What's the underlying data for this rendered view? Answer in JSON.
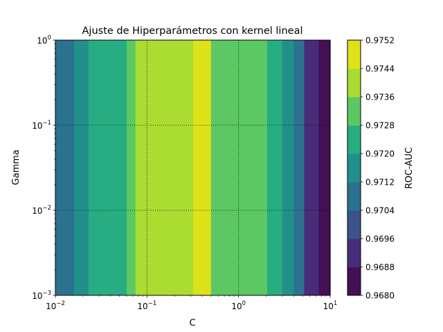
{
  "chart_data": {
    "type": "heatmap",
    "title": "Ajuste de Hiperparámetros con kernel lineal",
    "xlabel": "C",
    "ylabel": "Gamma",
    "colorbar_label": "ROC-AUC",
    "x_scale": "log",
    "y_scale": "log",
    "xlim": [
      0.01,
      10
    ],
    "ylim": [
      0.001,
      1
    ],
    "x_ticks": [
      {
        "value": 0.01,
        "base": "10",
        "exp": "−2"
      },
      {
        "value": 0.1,
        "base": "10",
        "exp": "−1"
      },
      {
        "value": 1,
        "base": "10",
        "exp": "0"
      },
      {
        "value": 10,
        "base": "10",
        "exp": "1"
      }
    ],
    "y_ticks": [
      {
        "value": 0.001,
        "base": "10",
        "exp": "−3"
      },
      {
        "value": 0.01,
        "base": "10",
        "exp": "−2"
      },
      {
        "value": 0.1,
        "base": "10",
        "exp": "−1"
      },
      {
        "value": 1,
        "base": "10",
        "exp": "0"
      }
    ],
    "grid": "dotted, at major ticks",
    "colorbar": {
      "levels": [
        0.968,
        0.9688,
        0.9696,
        0.9704,
        0.9712,
        0.972,
        0.9728,
        0.9736,
        0.9744,
        0.9752
      ],
      "tick_labels": [
        "0.9680",
        "0.9688",
        "0.9696",
        "0.9704",
        "0.9712",
        "0.9720",
        "0.9728",
        "0.9736",
        "0.9744",
        "0.9752"
      ],
      "colors": [
        "#440f54",
        "#472c7a",
        "#3b528b",
        "#2c728e",
        "#21908d",
        "#27ad81",
        "#5cc863",
        "#aadc32",
        "#dde318"
      ]
    },
    "bands": [
      {
        "c_from": 0.01,
        "c_to": 0.016,
        "level": 3
      },
      {
        "c_from": 0.016,
        "c_to": 0.023,
        "level": 4
      },
      {
        "c_from": 0.023,
        "c_to": 0.06,
        "level": 5
      },
      {
        "c_from": 0.06,
        "c_to": 0.075,
        "level": 6
      },
      {
        "c_from": 0.075,
        "c_to": 0.32,
        "level": 7
      },
      {
        "c_from": 0.32,
        "c_to": 0.5,
        "level": 8
      },
      {
        "c_from": 0.5,
        "c_to": 2.05,
        "level": 6
      },
      {
        "c_from": 2.05,
        "c_to": 3.0,
        "level": 5
      },
      {
        "c_from": 3.0,
        "c_to": 4.0,
        "level": 4
      },
      {
        "c_from": 4.0,
        "c_to": 5.2,
        "level": 3
      },
      {
        "c_from": 5.2,
        "c_to": 7.5,
        "level": 1
      },
      {
        "c_from": 7.5,
        "c_to": 10,
        "level": 0
      }
    ]
  }
}
